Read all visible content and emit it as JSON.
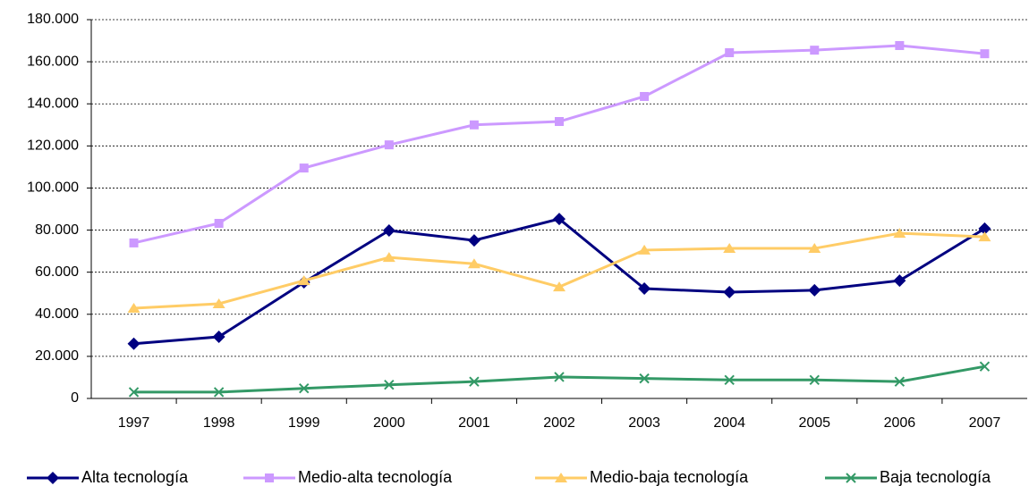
{
  "chart_data": {
    "type": "line",
    "categories": [
      "1997",
      "1998",
      "1999",
      "2000",
      "2001",
      "2002",
      "2003",
      "2004",
      "2005",
      "2006",
      "2007"
    ],
    "series": [
      {
        "name": "Alta tecnología",
        "color": "#000080",
        "marker": "diamond",
        "values": [
          26000,
          29300,
          55200,
          79800,
          75100,
          85300,
          52200,
          50500,
          51400,
          56000,
          80700
        ]
      },
      {
        "name": "Medio-alta tecnología",
        "color": "#cc99ff",
        "marker": "square",
        "values": [
          73900,
          83200,
          109500,
          120500,
          130000,
          131600,
          143500,
          164300,
          165500,
          167700,
          163800
        ]
      },
      {
        "name": "Medio-baja tecnología",
        "color": "#ffcc66",
        "marker": "triangle",
        "values": [
          42900,
          45000,
          56000,
          67000,
          64000,
          53000,
          70500,
          71300,
          71300,
          78500,
          76800
        ]
      },
      {
        "name": "Baja tecnología",
        "color": "#339966",
        "marker": "x",
        "values": [
          3000,
          3000,
          4800,
          6500,
          8000,
          10200,
          9500,
          8800,
          8800,
          8000,
          15200
        ]
      }
    ],
    "ylim": [
      0,
      180000
    ],
    "yticks": [
      0,
      {
        "value": 20000,
        "label": "20.000"
      },
      {
        "value": 40000,
        "label": "40.000"
      },
      {
        "value": 60000,
        "label": "60.000"
      },
      {
        "value": 80000,
        "label": "80.000"
      },
      {
        "value": 100000,
        "label": "100.000"
      },
      {
        "value": 120000,
        "label": "120.000"
      },
      {
        "value": 140000,
        "label": "140.000"
      },
      {
        "value": 160000,
        "label": "160.000"
      },
      {
        "value": 180000,
        "label": "180.000"
      }
    ],
    "grid": true,
    "legend": "bottom"
  }
}
